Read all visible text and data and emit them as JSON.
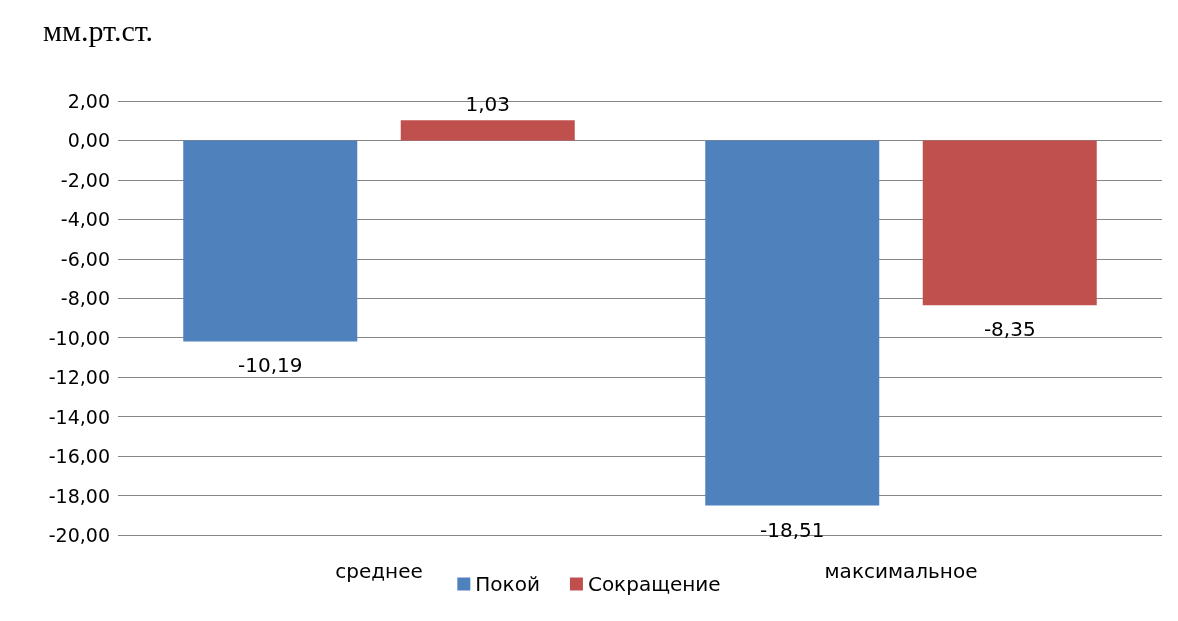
{
  "chart_data": {
    "type": "bar",
    "title": "мм.рт.ст.",
    "categories": [
      "среднее",
      "максимальное"
    ],
    "series": [
      {
        "name": "Покой",
        "color": "#4f81bd",
        "values": [
          -10.19,
          -18.51
        ],
        "value_labels": [
          "-10,19",
          "-18,51"
        ]
      },
      {
        "name": "Сокращение",
        "color": "#c0504d",
        "values": [
          1.03,
          -8.35
        ],
        "value_labels": [
          "1,03",
          "-8,35"
        ]
      }
    ],
    "ylim": [
      -20,
      2
    ],
    "yticks": [
      {
        "value": 2,
        "label": "2,00"
      },
      {
        "value": 0,
        "label": "0,00"
      },
      {
        "value": -2,
        "label": "-2,00"
      },
      {
        "value": -4,
        "label": "-4,00"
      },
      {
        "value": -6,
        "label": "-6,00"
      },
      {
        "value": -8,
        "label": "-8,00"
      },
      {
        "value": -10,
        "label": "-10,00"
      },
      {
        "value": -12,
        "label": "-12,00"
      },
      {
        "value": -14,
        "label": "-14,00"
      },
      {
        "value": -16,
        "label": "-16,00"
      },
      {
        "value": -18,
        "label": "-18,00"
      },
      {
        "value": -20,
        "label": "-20,00"
      }
    ],
    "grid": "y",
    "legend": "bottom"
  }
}
